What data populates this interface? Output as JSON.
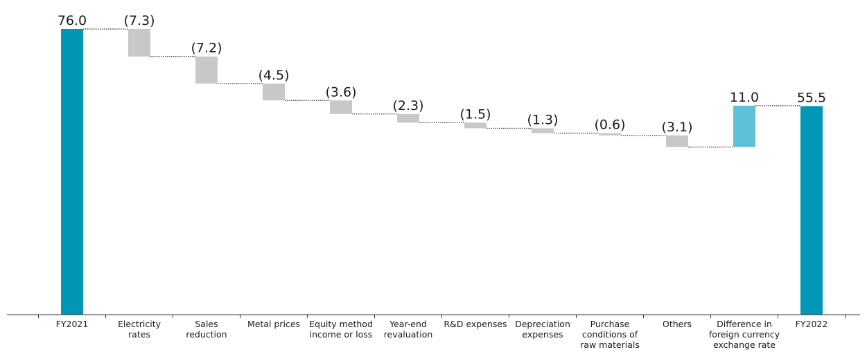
{
  "chart_data": {
    "type": "waterfall",
    "categories": [
      [
        "FY2021"
      ],
      [
        "Electricity",
        "rates"
      ],
      [
        "Sales",
        "reduction"
      ],
      [
        "Metal prices"
      ],
      [
        "Equity method",
        "income or loss"
      ],
      [
        "Year-end",
        "revaluation"
      ],
      [
        "R&D expenses"
      ],
      [
        "Depreciation",
        "expenses"
      ],
      [
        "Purchase",
        "conditions of",
        "raw materials"
      ],
      [
        "Others"
      ],
      [
        "Difference in",
        "foreign currency",
        "exchange rate"
      ],
      [
        "FY2022"
      ]
    ],
    "values": [
      76.0,
      -7.3,
      -7.2,
      -4.5,
      -3.6,
      -2.3,
      -1.5,
      -1.3,
      -0.6,
      -3.1,
      11.0,
      55.5
    ],
    "kinds": [
      "total",
      "delta",
      "delta",
      "delta",
      "delta",
      "delta",
      "delta",
      "delta",
      "delta",
      "delta",
      "delta",
      "total"
    ],
    "labels": [
      "76.0",
      "(7.3)",
      "(7.2)",
      "(4.5)",
      "(3.6)",
      "(2.3)",
      "(1.5)",
      "(1.3)",
      "(0.6)",
      "(3.1)",
      "11.0",
      "55.5"
    ],
    "ylim": [
      0,
      76
    ],
    "colors": {
      "total": "#0096b6",
      "decrease": "#c8c8c8",
      "increase": "#5ec1d8",
      "connector": "#333333",
      "axis": "#333333",
      "text": "#1a1a1a"
    }
  }
}
